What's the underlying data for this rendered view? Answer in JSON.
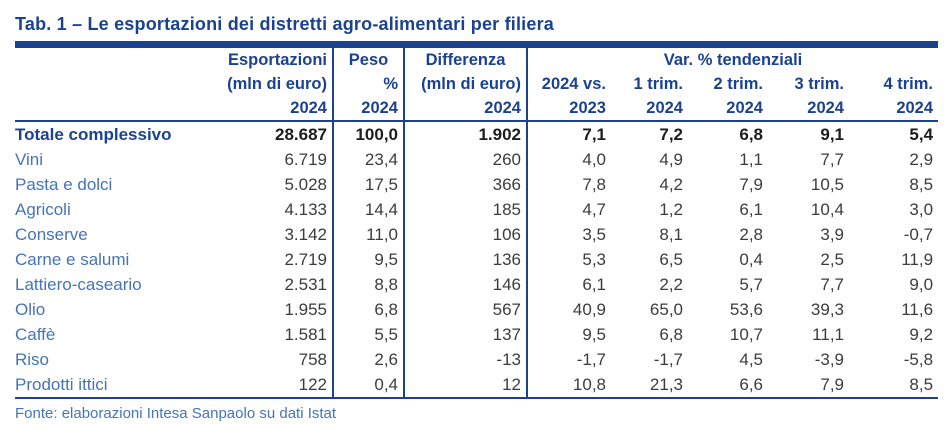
{
  "title": "Tab. 1 – Le esportazioni dei distretti agro-alimentari per filiera",
  "source": "Fonte: elaborazioni Intesa Sanpaolo su dati Istat",
  "colors": {
    "navy": "#1B4291",
    "label_blue": "#4674B7",
    "value_gray": "#3C3C3C",
    "total_black": "#1D1D1D",
    "background": "#ffffff"
  },
  "table": {
    "header": {
      "esportazioni": {
        "line1": "Esportazioni",
        "line2": "(mln di euro)",
        "line3": "2024"
      },
      "peso": {
        "line1": "Peso",
        "line2": "%",
        "line3": "2024"
      },
      "differenza": {
        "line1": "Differenza",
        "line2": "(mln di euro)",
        "line3": "2024"
      },
      "var_group_label": "Var. % tendenziali",
      "var_cols": [
        {
          "line1": "2024 vs.",
          "line2": "2023"
        },
        {
          "line1": "1 trim.",
          "line2": "2024"
        },
        {
          "line1": "2 trim.",
          "line2": "2024"
        },
        {
          "line1": "3 trim.",
          "line2": "2024"
        },
        {
          "line1": "4 trim.",
          "line2": "2024"
        }
      ]
    },
    "rows": [
      {
        "label": "Totale complessivo",
        "bold": true,
        "values": [
          "28.687",
          "100,0",
          "1.902",
          "7,1",
          "7,2",
          "6,8",
          "9,1",
          "5,4"
        ]
      },
      {
        "label": "Vini",
        "values": [
          "6.719",
          "23,4",
          "260",
          "4,0",
          "4,9",
          "1,1",
          "7,7",
          "2,9"
        ]
      },
      {
        "label": "Pasta e dolci",
        "values": [
          "5.028",
          "17,5",
          "366",
          "7,8",
          "4,2",
          "7,9",
          "10,5",
          "8,5"
        ]
      },
      {
        "label": "Agricoli",
        "values": [
          "4.133",
          "14,4",
          "185",
          "4,7",
          "1,2",
          "6,1",
          "10,4",
          "3,0"
        ]
      },
      {
        "label": "Conserve",
        "values": [
          "3.142",
          "11,0",
          "106",
          "3,5",
          "8,1",
          "2,8",
          "3,9",
          "-0,7"
        ]
      },
      {
        "label": "Carne e salumi",
        "values": [
          "2.719",
          "9,5",
          "136",
          "5,3",
          "6,5",
          "0,4",
          "2,5",
          "11,9"
        ]
      },
      {
        "label": "Lattiero-caseario",
        "values": [
          "2.531",
          "8,8",
          "146",
          "6,1",
          "2,2",
          "5,7",
          "7,7",
          "9,0"
        ]
      },
      {
        "label": "Olio",
        "values": [
          "1.955",
          "6,8",
          "567",
          "40,9",
          "65,0",
          "53,6",
          "39,3",
          "11,6"
        ]
      },
      {
        "label": "Caffè",
        "values": [
          "1.581",
          "5,5",
          "137",
          "9,5",
          "6,8",
          "10,7",
          "11,1",
          "9,2"
        ]
      },
      {
        "label": "Riso",
        "values": [
          "758",
          "2,6",
          "-13",
          "-1,7",
          "-1,7",
          "4,5",
          "-3,9",
          "-5,8"
        ]
      },
      {
        "label": "Prodotti ittici",
        "values": [
          "122",
          "0,4",
          "12",
          "10,8",
          "21,3",
          "6,6",
          "7,9",
          "8,5"
        ]
      }
    ]
  }
}
